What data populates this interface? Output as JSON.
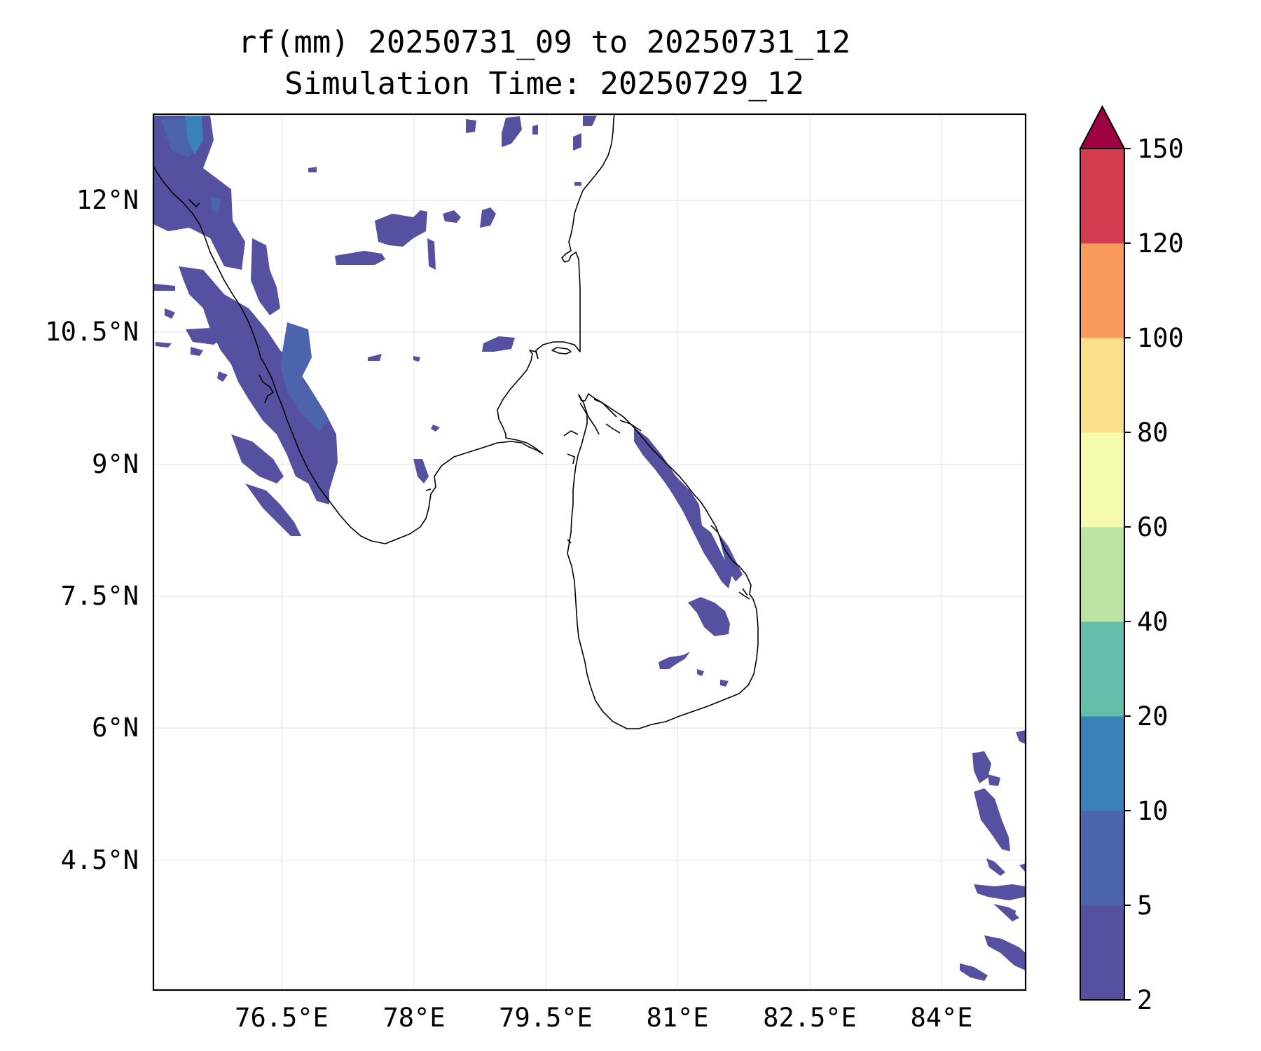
{
  "title": {
    "line1": "rf(mm) 20250731_09 to 20250731_12",
    "line2": "Simulation Time: 20250729_12"
  },
  "axes": {
    "lon_ticks": [
      "76.5°E",
      "78°E",
      "79.5°E",
      "81°E",
      "82.5°E",
      "84°E"
    ],
    "lat_ticks": [
      "12°N",
      "10.5°N",
      "9°N",
      "7.5°N",
      "6°N",
      "4.5°N"
    ],
    "lon_range": [
      75.0,
      84.9
    ],
    "lat_range": [
      3.4,
      13.35
    ]
  },
  "colorbar": {
    "levels": [
      "2",
      "5",
      "10",
      "20",
      "40",
      "60",
      "80",
      "100",
      "120",
      "150"
    ],
    "colors": [
      "#5551a0",
      "#4c64ad",
      "#3a80b9",
      "#63bda9",
      "#bde3a2",
      "#f4fbad",
      "#fbe08a",
      "#f99b5a",
      "#d43d4f",
      "#9e0142"
    ],
    "extend": "max"
  }
}
